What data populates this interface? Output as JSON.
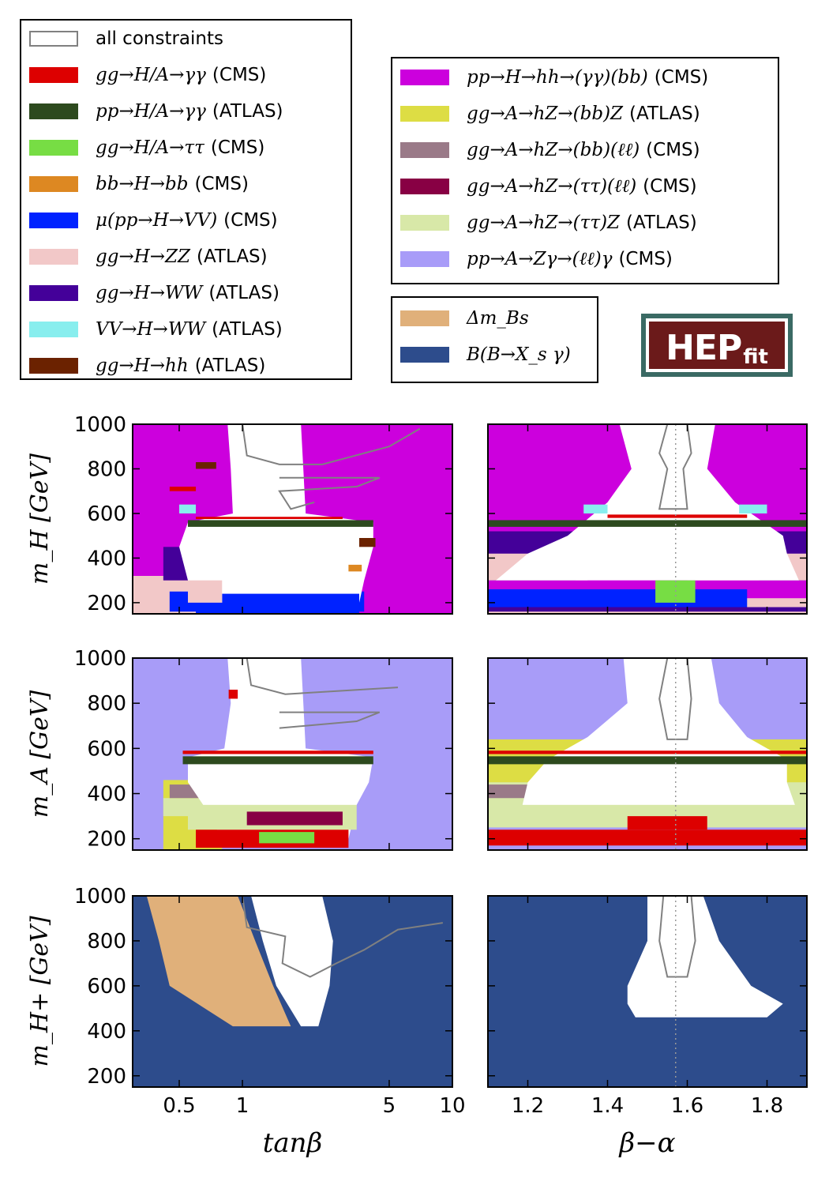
{
  "legend": {
    "items_left": [
      {
        "proc": "all constraints",
        "exp": "",
        "color": "#ffffff",
        "outline": "#808080",
        "plain": true
      },
      {
        "proc": "gg→H/A→γγ",
        "exp": "(CMS)",
        "color": "#dd0000"
      },
      {
        "proc": "pp→H/A→γγ",
        "exp": "(ATLAS)",
        "color": "#2d4a1e"
      },
      {
        "proc": "gg→H/A→ττ",
        "exp": "(CMS)",
        "color": "#77dd44"
      },
      {
        "proc": "bb→H→bb",
        "exp": "(CMS)",
        "color": "#dd8822"
      },
      {
        "proc": "μ(pp→H→VV)",
        "exp": "(CMS)",
        "color": "#0022ff"
      },
      {
        "proc": "gg→H→ZZ",
        "exp": "(ATLAS)",
        "color": "#f2c8c8"
      },
      {
        "proc": "gg→H→WW",
        "exp": "(ATLAS)",
        "color": "#440099"
      },
      {
        "proc": "VV→H→WW",
        "exp": "(ATLAS)",
        "color": "#88eeee"
      },
      {
        "proc": "gg→H→hh",
        "exp": "(ATLAS)",
        "color": "#6b2200"
      }
    ],
    "items_right": [
      {
        "proc": "pp→H→hh→(γγ)(bb)",
        "exp": "(CMS)",
        "color": "#cc00dd"
      },
      {
        "proc": "gg→A→hZ→(bb)Z",
        "exp": "(ATLAS)",
        "color": "#dddd44"
      },
      {
        "proc": "gg→A→hZ→(bb)(ℓℓ)",
        "exp": "(CMS)",
        "color": "#9a7a88"
      },
      {
        "proc": "gg→A→hZ→(ττ)(ℓℓ)",
        "exp": "(CMS)",
        "color": "#880044"
      },
      {
        "proc": "gg→A→hZ→(ττ)Z",
        "exp": "(ATLAS)",
        "color": "#d8e8a8"
      },
      {
        "proc": "pp→A→Zγ→(ℓℓ)γ",
        "exp": "(CMS)",
        "color": "#a89cf8"
      }
    ],
    "items_bottom": [
      {
        "proc": "Δm_Bs",
        "exp": "",
        "color": "#e0b07a"
      },
      {
        "proc": "B(B→X_s γ)",
        "exp": "",
        "color": "#2d4c8c"
      }
    ]
  },
  "logo": {
    "main": "HEP",
    "sub": "fit"
  },
  "axes": {
    "xlabel_left": "tanβ",
    "xlabel_right": "β−α",
    "ylabel_rows": [
      "m_H  [GeV]",
      "m_A  [GeV]",
      "m_H+  [GeV]"
    ],
    "y_ticks": [
      "200",
      "400",
      "600",
      "800",
      "1000"
    ],
    "x_ticks_left": [
      "0.5",
      "1",
      "5",
      "10"
    ],
    "x_ticks_right": [
      "1.2",
      "1.4",
      "1.6",
      "1.8"
    ]
  },
  "chart_data": {
    "type": "area",
    "layout": "3 rows x 2 columns",
    "ylim": [
      150,
      1000
    ],
    "x_left": {
      "label": "tanβ",
      "scale": "log",
      "range": [
        0.3,
        10
      ]
    },
    "x_right": {
      "label": "β−α",
      "scale": "linear",
      "range": [
        1.1,
        1.9
      ]
    },
    "reference_line_right": 1.5708,
    "rows": [
      {
        "ylabel": "m_H [GeV]",
        "allowed_left": [
          [
            1000,
            0.85,
            1.9
          ],
          [
            800,
            0.88,
            1.95
          ],
          [
            600,
            0.9,
            2.0
          ],
          [
            560,
            0.55,
            4.2
          ],
          [
            450,
            0.5,
            4.2
          ],
          [
            300,
            0.55,
            3.8
          ],
          [
            200,
            0.8,
            3.6
          ]
        ],
        "allowed_right": [
          [
            1000,
            1.43,
            1.67
          ],
          [
            800,
            1.46,
            1.65
          ],
          [
            650,
            1.4,
            1.72
          ],
          [
            500,
            1.3,
            1.84
          ],
          [
            420,
            1.2,
            1.85
          ],
          [
            300,
            1.12,
            1.88
          ]
        ]
      },
      {
        "ylabel": "m_A [GeV]",
        "allowed_left": [
          [
            1000,
            0.85,
            1.9
          ],
          [
            800,
            0.88,
            1.95
          ],
          [
            600,
            0.82,
            2.0
          ],
          [
            560,
            0.55,
            4.2
          ],
          [
            450,
            0.55,
            4.0
          ],
          [
            350,
            0.65,
            3.5
          ],
          [
            200,
            0.8,
            3.2
          ]
        ],
        "allowed_right": [
          [
            1000,
            1.44,
            1.66
          ],
          [
            800,
            1.45,
            1.68
          ],
          [
            650,
            1.35,
            1.75
          ],
          [
            550,
            1.25,
            1.85
          ],
          [
            450,
            1.2,
            1.85
          ],
          [
            300,
            1.18,
            1.88
          ]
        ]
      },
      {
        "ylabel": "m_H+ [GeV]",
        "allowed_left": [
          [
            1000,
            1.1,
            2.4
          ],
          [
            800,
            1.25,
            2.7
          ],
          [
            600,
            1.45,
            2.6
          ],
          [
            420,
            1.9,
            2.3
          ]
        ],
        "allowed_right": [
          [
            1000,
            1.5,
            1.64
          ],
          [
            800,
            1.5,
            1.68
          ],
          [
            600,
            1.45,
            1.76
          ],
          [
            520,
            1.45,
            1.84
          ],
          [
            460,
            1.47,
            1.8
          ]
        ],
        "delta_mBs_left": [
          [
            1000,
            0.35,
            0.95
          ],
          [
            800,
            0.4,
            1.15
          ],
          [
            600,
            0.45,
            1.4
          ],
          [
            420,
            0.9,
            1.7
          ]
        ]
      }
    ]
  }
}
